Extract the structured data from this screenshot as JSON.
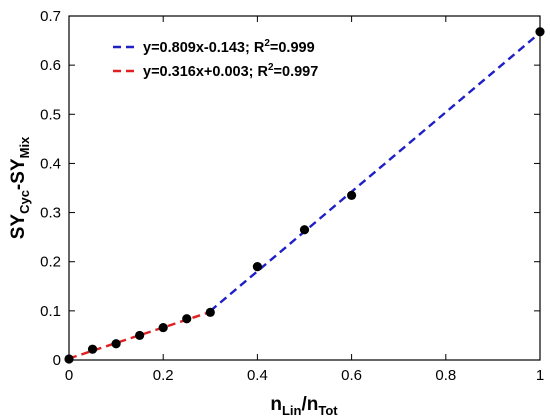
{
  "chart_data": {
    "type": "scatter",
    "xlim": [
      0,
      1
    ],
    "ylim": [
      0,
      0.7
    ],
    "x_ticks": [
      "0",
      "0.2",
      "0.4",
      "0.6",
      "0.8",
      "1"
    ],
    "y_ticks": [
      "0",
      "0.1",
      "0.2",
      "0.3",
      "0.4",
      "0.5",
      "0.6",
      "0.7"
    ],
    "xlabel": {
      "main": "n",
      "sub1": "Lin",
      "sep": "/n",
      "sub2": "Tot"
    },
    "ylabel": {
      "main1": "SY",
      "sub1": "Cyc",
      "sep": "-SY",
      "sub2": "Mix"
    },
    "grid": false,
    "legend_position": "top-left",
    "points": {
      "x": [
        0,
        0.05,
        0.1,
        0.15,
        0.2,
        0.25,
        0.3,
        0.4,
        0.5,
        0.6,
        1.0
      ],
      "y": [
        0.002,
        0.022,
        0.033,
        0.05,
        0.066,
        0.084,
        0.097,
        0.19,
        0.265,
        0.335,
        0.668
      ],
      "color": "#000000"
    },
    "fits": [
      {
        "label_pre": "y=0.809x-0.143; R",
        "label_sup": "2",
        "label_post": "=0.999",
        "slope": 0.809,
        "intercept": -0.143,
        "x_range": [
          0.3,
          1.0
        ],
        "color": "#1f1fc8"
      },
      {
        "label_pre": "y=0.316x+0.003; R",
        "label_sup": "2",
        "label_post": "=0.997",
        "slope": 0.316,
        "intercept": 0.003,
        "x_range": [
          0,
          0.3
        ],
        "color": "#e02020"
      }
    ]
  }
}
